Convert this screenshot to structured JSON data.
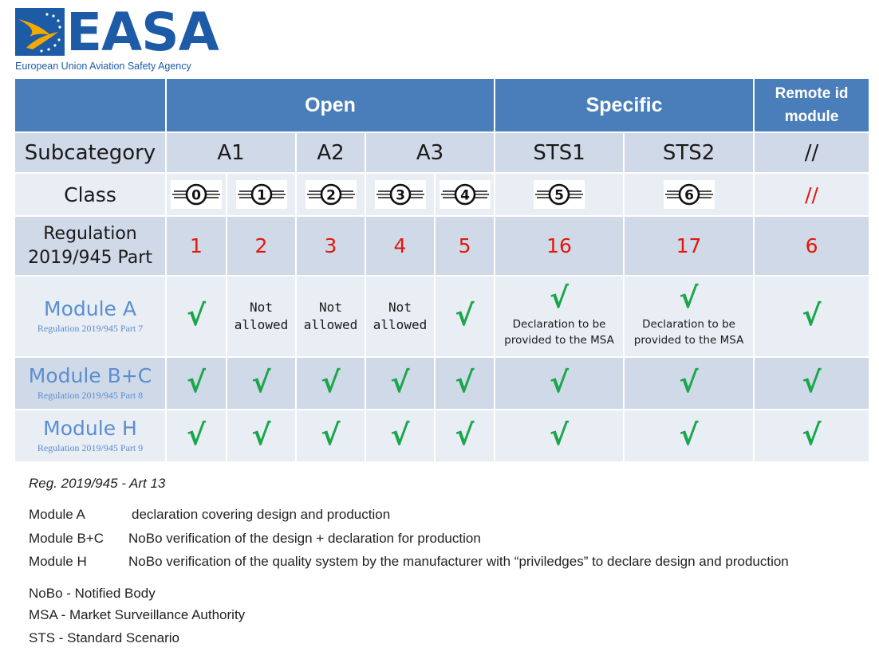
{
  "logo": {
    "wordmark": "EASA",
    "subtitle": "European Union Aviation Safety Agency",
    "brand_color": "#1e5ba6",
    "emblem_color": "#f2a900"
  },
  "table": {
    "header": {
      "open": "Open",
      "specific": "Specific",
      "remote_line1": "Remote id",
      "remote_line2": "module"
    },
    "subcategory": {
      "label": "Subcategory",
      "a1": "A1",
      "a2": "A2",
      "a3": "A3",
      "sts1": "STS1",
      "sts2": "STS2",
      "remote": "//"
    },
    "class": {
      "label": "Class",
      "badges": [
        "0",
        "1",
        "2",
        "3",
        "4",
        "5",
        "6"
      ],
      "remote": "//"
    },
    "regulation": {
      "label_line1": "Regulation",
      "label_line2": "2019/945 Part",
      "parts": [
        "1",
        "2",
        "3",
        "4",
        "5",
        "16",
        "17",
        "6"
      ]
    },
    "module_a": {
      "title": "Module A",
      "subtitle": "Regulation 2019/945 Part 7",
      "cells": [
        "√",
        "Not allowed",
        "Not allowed",
        "Not allowed",
        "√",
        "√",
        "√",
        "√"
      ],
      "na_line1": "Not",
      "na_line2": "allowed",
      "decl_line1": "Declaration to be",
      "decl_line2": "provided to the MSA"
    },
    "module_bc": {
      "title": "Module B+C",
      "subtitle": "Regulation 2019/945 Part 8",
      "cells": [
        "√",
        "√",
        "√",
        "√",
        "√",
        "√",
        "√",
        "√"
      ]
    },
    "module_h": {
      "title": "Module H",
      "subtitle": "Regulation 2019/945 Part 9",
      "cells": [
        "√",
        "√",
        "√",
        "√",
        "√",
        "√",
        "√",
        "√"
      ]
    },
    "colors": {
      "header": "#4a7ebb",
      "row_dark": "#d0d9e8",
      "row_light": "#e9edf4",
      "check": "#1aa64b",
      "red": "#e3170a",
      "module_text": "#5b8ed0"
    }
  },
  "notes": {
    "reference": "Reg. 2019/945 - Art 13",
    "modules": [
      {
        "key": "Module A",
        "text": "declaration covering design and production"
      },
      {
        "key": "Module B+C",
        "text": "NoBo verification of the design + declaration for production"
      },
      {
        "key": "Module H",
        "text": "NoBo verification of the quality system by the manufacturer  with “priviledges” to declare design and production"
      }
    ],
    "glossary": [
      "NoBo - Notified Body",
      "MSA - Market Surveillance Authority",
      "STS - Standard Scenario"
    ]
  }
}
